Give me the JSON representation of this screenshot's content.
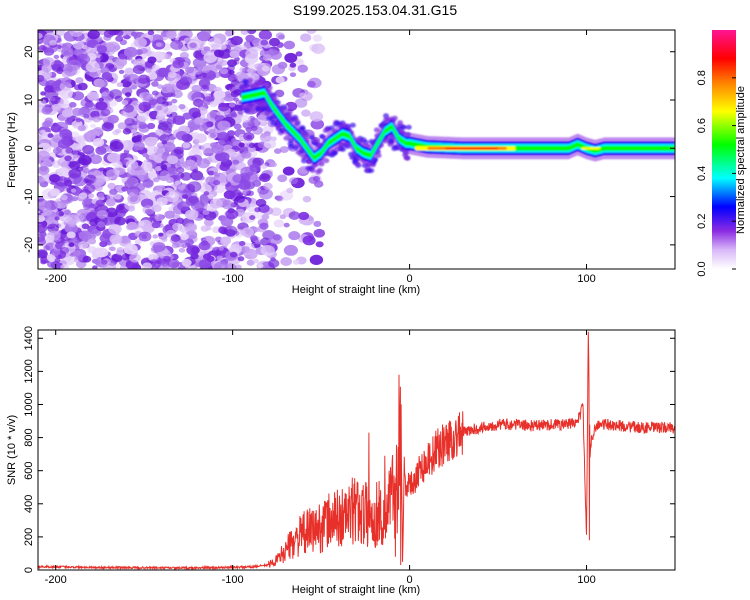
{
  "title": "S199.2025.153.04.31.G15",
  "chart_data": [
    {
      "type": "heatmap",
      "xlabel": "Height of straight line (km)",
      "ylabel": "Frequency (Hz)",
      "xlim": [
        -210,
        150
      ],
      "ylim": [
        -25,
        24.5
      ],
      "xticks": [
        -200,
        -100,
        0,
        100
      ],
      "xtick_labels": [
        "-200",
        "-100",
        "0",
        "100"
      ],
      "yticks": [
        -20,
        -10,
        0,
        10,
        20
      ],
      "ytick_labels": [
        "-20",
        "-10",
        "0",
        "10",
        "20"
      ],
      "colorbar": {
        "label": "Normalized spectral amplitude",
        "range": [
          0,
          1
        ],
        "ticks": [
          0.0,
          0.2,
          0.4,
          0.6,
          0.8
        ],
        "tick_labels": [
          "0.0",
          "0.2",
          "0.4",
          "0.6",
          "0.8"
        ],
        "colormap": [
          "#ffffff",
          "#d8b8f8",
          "#8a2be2",
          "#0000ff",
          "#00ffff",
          "#00ff00",
          "#ffff00",
          "#ff8000",
          "#ff0000",
          "#ff1493"
        ]
      },
      "noise_region_x": [
        -210,
        -80
      ],
      "ridge": {
        "x": [
          -95,
          -88,
          -82,
          -78,
          -74,
          -70,
          -66,
          -62,
          -58,
          -54,
          -50,
          -46,
          -42,
          -38,
          -34,
          -30,
          -26,
          -22,
          -18,
          -14,
          -10,
          -6,
          -2,
          0,
          10,
          30,
          60,
          90,
          95,
          100,
          105,
          110,
          120,
          150
        ],
        "y": [
          10.5,
          11,
          11.5,
          9,
          7,
          5,
          3.5,
          2,
          0,
          -2,
          -1,
          1,
          2,
          3,
          2.5,
          0,
          -1,
          -1.5,
          1,
          3.5,
          4.5,
          2,
          1,
          1,
          0.3,
          0,
          0,
          0,
          0.8,
          0,
          -0.5,
          0,
          0,
          0
        ]
      },
      "gridlines": false
    },
    {
      "type": "line",
      "xlabel": "Height of straight line (km)",
      "ylabel": "SNR (10 * v/v)",
      "xlim": [
        -210,
        150
      ],
      "ylim": [
        0,
        1450
      ],
      "xticks": [
        -200,
        -100,
        0,
        100
      ],
      "xtick_labels": [
        "-200",
        "-100",
        "0",
        "100"
      ],
      "yticks": [
        0,
        200,
        400,
        600,
        800,
        1000,
        1200,
        1400
      ],
      "ytick_labels": [
        "0",
        "200",
        "400",
        "600",
        "800",
        "1000",
        "1200",
        "1400"
      ],
      "series": [
        {
          "color": "#e8302a",
          "x": [
            -210,
            -190,
            -170,
            -150,
            -130,
            -110,
            -90,
            -80,
            -75,
            -70,
            -65,
            -60,
            -55,
            -50,
            -45,
            -40,
            -35,
            -30,
            -25,
            -20,
            -17,
            -15,
            -12,
            -10,
            -8,
            -6,
            -5,
            -4,
            -3,
            -2,
            0,
            5,
            10,
            15,
            20,
            25,
            30,
            40,
            50,
            60,
            70,
            80,
            90,
            95,
            98,
            100,
            101,
            102,
            103,
            105,
            110,
            120,
            130,
            140,
            150
          ],
          "y": [
            20,
            18,
            15,
            14,
            12,
            14,
            18,
            30,
            60,
            120,
            180,
            220,
            240,
            260,
            300,
            310,
            330,
            370,
            340,
            300,
            380,
            250,
            420,
            450,
            480,
            600,
            1180,
            50,
            600,
            520,
            500,
            600,
            660,
            720,
            770,
            800,
            830,
            860,
            880,
            880,
            870,
            880,
            880,
            900,
            990,
            180,
            1440,
            700,
            800,
            870,
            880,
            870,
            860,
            860,
            860
          ],
          "spikes": [
            {
              "x": -23,
              "y": 830
            },
            {
              "x": -14,
              "y": 690
            },
            {
              "x": -8,
              "y": 80
            },
            {
              "x": -6,
              "y": 1180
            },
            {
              "x": -5,
              "y": 30
            },
            {
              "x": 101,
              "y": 1440
            },
            {
              "x": 101.5,
              "y": 180
            }
          ]
        }
      ],
      "gridlines": false
    }
  ]
}
